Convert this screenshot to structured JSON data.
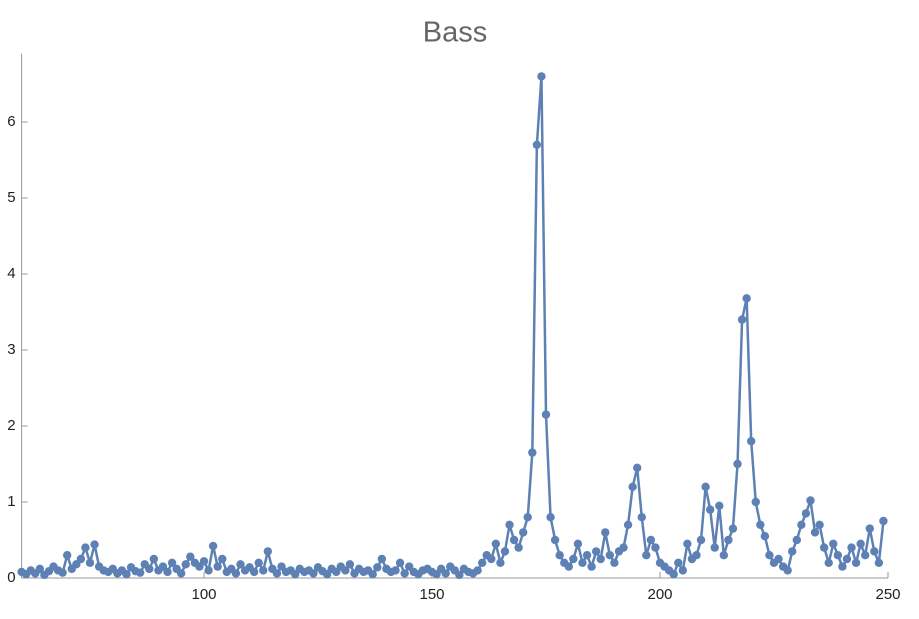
{
  "chart_data": {
    "type": "line",
    "title": "Bass",
    "color": "#5e81b5",
    "x": [
      60,
      61,
      62,
      63,
      64,
      65,
      66,
      67,
      68,
      69,
      70,
      71,
      72,
      73,
      74,
      75,
      76,
      77,
      78,
      79,
      80,
      81,
      82,
      83,
      84,
      85,
      86,
      87,
      88,
      89,
      90,
      91,
      92,
      93,
      94,
      95,
      96,
      97,
      98,
      99,
      100,
      101,
      102,
      103,
      104,
      105,
      106,
      107,
      108,
      109,
      110,
      111,
      112,
      113,
      114,
      115,
      116,
      117,
      118,
      119,
      120,
      121,
      122,
      123,
      124,
      125,
      126,
      127,
      128,
      129,
      130,
      131,
      132,
      133,
      134,
      135,
      136,
      137,
      138,
      139,
      140,
      141,
      142,
      143,
      144,
      145,
      146,
      147,
      148,
      149,
      150,
      151,
      152,
      153,
      154,
      155,
      156,
      157,
      158,
      159,
      160,
      161,
      162,
      163,
      164,
      165,
      166,
      167,
      168,
      169,
      170,
      171,
      172,
      173,
      174,
      175,
      176,
      177,
      178,
      179,
      180,
      181,
      182,
      183,
      184,
      185,
      186,
      187,
      188,
      189,
      190,
      191,
      192,
      193,
      194,
      195,
      196,
      197,
      198,
      199,
      200,
      201,
      202,
      203,
      204,
      205,
      206,
      207,
      208,
      209,
      210,
      211,
      212,
      213,
      214,
      215,
      216,
      217,
      218,
      219,
      220,
      221,
      222,
      223,
      224,
      225,
      226,
      227,
      228,
      229,
      230,
      231,
      232,
      233,
      234,
      235,
      236,
      237,
      238,
      239,
      240,
      241,
      242,
      243,
      244,
      245,
      246,
      247,
      248,
      249
    ],
    "values": [
      0.08,
      0.05,
      0.1,
      0.06,
      0.12,
      0.04,
      0.09,
      0.15,
      0.1,
      0.07,
      0.3,
      0.12,
      0.18,
      0.25,
      0.4,
      0.2,
      0.44,
      0.15,
      0.1,
      0.08,
      0.12,
      0.06,
      0.1,
      0.05,
      0.14,
      0.09,
      0.07,
      0.18,
      0.12,
      0.25,
      0.1,
      0.15,
      0.08,
      0.2,
      0.12,
      0.06,
      0.18,
      0.28,
      0.2,
      0.15,
      0.22,
      0.1,
      0.42,
      0.15,
      0.25,
      0.08,
      0.12,
      0.06,
      0.18,
      0.1,
      0.14,
      0.08,
      0.2,
      0.1,
      0.35,
      0.12,
      0.06,
      0.15,
      0.08,
      0.1,
      0.05,
      0.12,
      0.08,
      0.1,
      0.06,
      0.14,
      0.09,
      0.05,
      0.12,
      0.08,
      0.15,
      0.1,
      0.18,
      0.06,
      0.12,
      0.08,
      0.1,
      0.05,
      0.14,
      0.25,
      0.12,
      0.08,
      0.1,
      0.2,
      0.06,
      0.15,
      0.08,
      0.05,
      0.1,
      0.12,
      0.08,
      0.05,
      0.12,
      0.06,
      0.15,
      0.1,
      0.04,
      0.12,
      0.08,
      0.06,
      0.1,
      0.2,
      0.3,
      0.25,
      0.45,
      0.2,
      0.35,
      0.7,
      0.5,
      0.4,
      0.6,
      0.8,
      1.65,
      5.7,
      6.6,
      2.15,
      0.8,
      0.5,
      0.3,
      0.2,
      0.15,
      0.25,
      0.45,
      0.2,
      0.3,
      0.15,
      0.35,
      0.25,
      0.6,
      0.3,
      0.2,
      0.35,
      0.4,
      0.7,
      1.2,
      1.45,
      0.8,
      0.3,
      0.5,
      0.4,
      0.2,
      0.15,
      0.1,
      0.05,
      0.2,
      0.1,
      0.45,
      0.25,
      0.3,
      0.5,
      1.2,
      0.9,
      0.4,
      0.95,
      0.3,
      0.5,
      0.65,
      1.5,
      3.4,
      3.68,
      1.8,
      1.0,
      0.7,
      0.55,
      0.3,
      0.2,
      0.25,
      0.15,
      0.1,
      0.35,
      0.5,
      0.7,
      0.85,
      1.02,
      0.6,
      0.7,
      0.4,
      0.2,
      0.45,
      0.3,
      0.15,
      0.25,
      0.4,
      0.2,
      0.45,
      0.3,
      0.65,
      0.35,
      0.2,
      0.75
    ],
    "xlim": [
      60,
      250
    ],
    "xticks": [
      100,
      150,
      200,
      250
    ],
    "ylim": [
      0,
      6.9
    ],
    "yticks": [
      0,
      1,
      2,
      3,
      4,
      5,
      6
    ]
  }
}
